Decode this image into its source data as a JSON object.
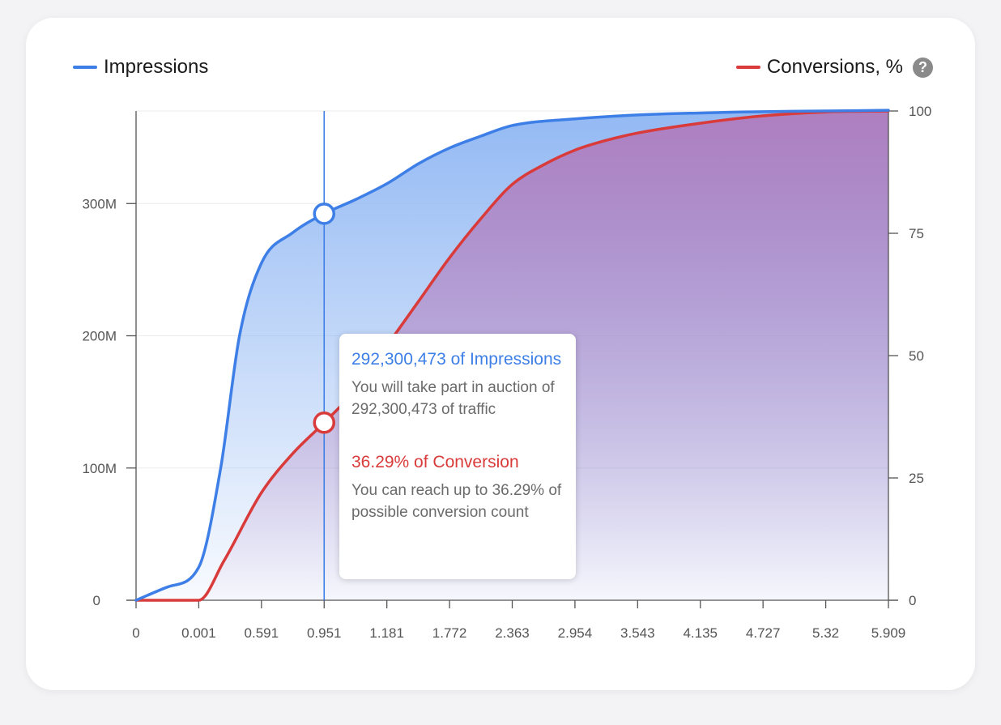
{
  "legend": {
    "impressions_label": "Impressions",
    "conversions_label": "Conversions, %",
    "help_symbol": "?"
  },
  "colors": {
    "impressions": "#3d7fe6",
    "conversions": "#d93a3a",
    "axis": "#555555",
    "grid": "#ebebeb"
  },
  "tooltip": {
    "impressions_title": "292,300,473 of Impressions",
    "impressions_text": "You will take part in auction of 292,300,473 of traffic",
    "conversion_title": "36.29% of Conversion",
    "conversion_text": "You can reach up to 36.29% of possible conversion count"
  },
  "chart_data": {
    "type": "area",
    "x_tick_labels": [
      "0",
      "0.001",
      "0.591",
      "0.951",
      "1.181",
      "1.772",
      "2.363",
      "2.954",
      "3.543",
      "4.135",
      "4.727",
      "5.32",
      "5.909"
    ],
    "y_left": {
      "ticks": [
        0,
        100000000,
        200000000,
        300000000
      ],
      "tick_labels": [
        "0",
        "100M",
        "200M",
        "300M"
      ],
      "range": [
        0,
        370000000
      ]
    },
    "y_right": {
      "ticks": [
        0,
        25,
        50,
        75,
        100
      ],
      "tick_labels": [
        "0",
        "25",
        "50",
        "75",
        "100"
      ],
      "range": [
        0,
        100
      ]
    },
    "grid": true,
    "selected_index": 3,
    "series": [
      {
        "name": "Impressions",
        "axis": "left",
        "points": [
          [
            0,
            0
          ],
          [
            0.5,
            10000000
          ],
          [
            1,
            25000000
          ],
          [
            1.35,
            100000000
          ],
          [
            1.65,
            200000000
          ],
          [
            2,
            255000000
          ],
          [
            2.5,
            278000000
          ],
          [
            3,
            292300473
          ],
          [
            3.5,
            303000000
          ],
          [
            4,
            315000000
          ],
          [
            4.5,
            330000000
          ],
          [
            5,
            342000000
          ],
          [
            5.5,
            351000000
          ],
          [
            6,
            359000000
          ],
          [
            7,
            364000000
          ],
          [
            8,
            367000000
          ],
          [
            9,
            368500000
          ],
          [
            10,
            369500000
          ],
          [
            11,
            370000000
          ],
          [
            12,
            370500000
          ]
        ]
      },
      {
        "name": "Conversions, %",
        "axis": "right",
        "points": [
          [
            0,
            0
          ],
          [
            1,
            0
          ],
          [
            1.4,
            8
          ],
          [
            2,
            22
          ],
          [
            2.5,
            30
          ],
          [
            3,
            36.29
          ],
          [
            3.5,
            43
          ],
          [
            4,
            52
          ],
          [
            4.5,
            61
          ],
          [
            5,
            70
          ],
          [
            5.5,
            78
          ],
          [
            6,
            85
          ],
          [
            6.5,
            89
          ],
          [
            7,
            92
          ],
          [
            7.5,
            94
          ],
          [
            8,
            95.5
          ],
          [
            9,
            97.5
          ],
          [
            10,
            99
          ],
          [
            11,
            99.8
          ],
          [
            12,
            100
          ]
        ]
      }
    ]
  }
}
